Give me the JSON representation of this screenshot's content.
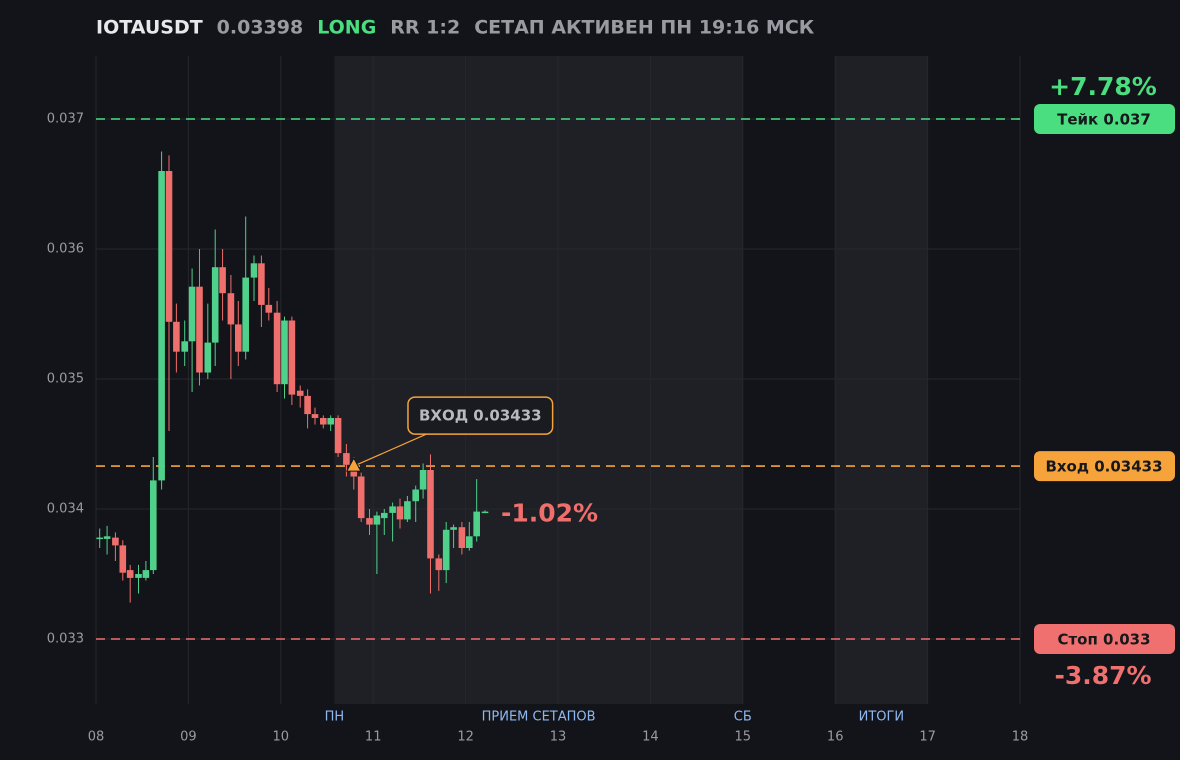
{
  "chart_data": {
    "type": "candlestick",
    "header": {
      "symbol": "IOTAUSDT",
      "price": 0.03398,
      "side": "LONG",
      "rr": "RR 1:2",
      "status": "СЕТАП АКТИВЕН ПН 19:16 МСК"
    },
    "x": [
      8.04,
      8.12,
      8.21,
      8.29,
      8.37,
      8.46,
      8.54,
      8.62,
      8.71,
      8.79,
      8.87,
      8.96,
      9.04,
      9.12,
      9.21,
      9.29,
      9.37,
      9.46,
      9.54,
      9.62,
      9.71,
      9.79,
      9.87,
      9.96,
      10.04,
      10.12,
      10.21,
      10.29,
      10.37,
      10.46,
      10.54,
      10.62,
      10.71,
      10.79,
      10.87,
      10.96,
      11.04,
      11.12,
      11.21,
      11.29,
      11.37,
      11.46,
      11.54,
      11.62,
      11.71,
      11.79,
      11.87,
      11.96,
      12.04,
      12.12,
      12.21
    ],
    "series": [
      {
        "name": "IOTAUSDT",
        "up_color": "#4fd18b",
        "down_color": "#ef6f6c",
        "open": [
          0.03378,
          0.03377,
          0.03378,
          0.03372,
          0.03353,
          0.03347,
          0.03347,
          0.03353,
          0.03422,
          0.0366,
          0.03544,
          0.03521,
          0.03529,
          0.03571,
          0.03505,
          0.03528,
          0.03586,
          0.03566,
          0.03542,
          0.03521,
          0.03578,
          0.03589,
          0.03557,
          0.03551,
          0.03496,
          0.03545,
          0.03491,
          0.03487,
          0.03473,
          0.0347,
          0.03465,
          0.0347,
          0.03443,
          0.03434,
          0.03425,
          0.03393,
          0.03388,
          0.03393,
          0.03397,
          0.03402,
          0.03392,
          0.03406,
          0.03415,
          0.0343,
          0.03362,
          0.03353,
          0.03384,
          0.03386,
          0.0337,
          0.03379,
          0.03398
        ],
        "high": [
          0.03385,
          0.03387,
          0.03382,
          0.03376,
          0.03357,
          0.03357,
          0.0336,
          0.0344,
          0.03675,
          0.03672,
          0.03558,
          0.03545,
          0.03585,
          0.036,
          0.03558,
          0.03615,
          0.036,
          0.0358,
          0.0356,
          0.03625,
          0.03595,
          0.03595,
          0.0357,
          0.0356,
          0.03548,
          0.03548,
          0.03495,
          0.03492,
          0.03478,
          0.03472,
          0.03472,
          0.03472,
          0.0345,
          0.0344,
          0.03428,
          0.034,
          0.03398,
          0.034,
          0.03405,
          0.03408,
          0.0341,
          0.03418,
          0.03435,
          0.03442,
          0.03365,
          0.0339,
          0.03388,
          0.0339,
          0.0339,
          0.03423,
          0.03399
        ],
        "low": [
          0.0337,
          0.03365,
          0.0336,
          0.03345,
          0.03328,
          0.03335,
          0.03345,
          0.0335,
          0.03415,
          0.0346,
          0.03505,
          0.0351,
          0.0349,
          0.03495,
          0.035,
          0.0351,
          0.03545,
          0.035,
          0.0351,
          0.03515,
          0.0356,
          0.0354,
          0.03545,
          0.0349,
          0.03485,
          0.0348,
          0.03478,
          0.03462,
          0.03465,
          0.03462,
          0.0346,
          0.0344,
          0.03425,
          0.03415,
          0.0339,
          0.0338,
          0.0335,
          0.0338,
          0.03375,
          0.03385,
          0.0339,
          0.0339,
          0.03408,
          0.03335,
          0.03337,
          0.03343,
          0.0337,
          0.03365,
          0.03368,
          0.03375,
          0.03397
        ],
        "close": [
          0.03378,
          0.03379,
          0.03372,
          0.03351,
          0.03347,
          0.0335,
          0.03353,
          0.03422,
          0.0366,
          0.03544,
          0.03521,
          0.03529,
          0.03571,
          0.03505,
          0.03528,
          0.03586,
          0.03566,
          0.03542,
          0.03521,
          0.03578,
          0.03589,
          0.03557,
          0.03551,
          0.03496,
          0.03545,
          0.03488,
          0.03487,
          0.03473,
          0.0347,
          0.03465,
          0.0347,
          0.03443,
          0.03434,
          0.03425,
          0.03393,
          0.03388,
          0.03395,
          0.03397,
          0.03402,
          0.03392,
          0.03406,
          0.03415,
          0.0343,
          0.03362,
          0.03353,
          0.03384,
          0.03386,
          0.0337,
          0.03379,
          0.03398,
          0.03398
        ]
      }
    ],
    "xlim": [
      8,
      18
    ],
    "xticks": [
      {
        "value": 8,
        "label": "08"
      },
      {
        "value": 9,
        "label": "09"
      },
      {
        "value": 10,
        "label": "10"
      },
      {
        "value": 11,
        "label": "11"
      },
      {
        "value": 12,
        "label": "12"
      },
      {
        "value": 13,
        "label": "13"
      },
      {
        "value": 14,
        "label": "14"
      },
      {
        "value": 15,
        "label": "15"
      },
      {
        "value": 16,
        "label": "16"
      },
      {
        "value": 17,
        "label": "17"
      },
      {
        "value": 18,
        "label": "18"
      }
    ],
    "ylim": [
      0.0325,
      0.0375
    ],
    "yticks": [
      0.033,
      0.034,
      0.035,
      0.036,
      0.037
    ],
    "grid": true,
    "sessions": [
      {
        "from": 10.58,
        "to": 15,
        "label": "ПРИЕМ СЕТАПОВ"
      },
      {
        "from": 16,
        "to": 17,
        "label": "ИТОГИ"
      }
    ],
    "day_markers": [
      {
        "x": 10.58,
        "label": "ПН"
      },
      {
        "x": 15,
        "label": "СБ"
      }
    ],
    "levels": [
      {
        "value": 0.037,
        "label": "Тейк 0.037",
        "color": "#4ade80",
        "change": "+7.78%"
      },
      {
        "value": 0.03433,
        "label": "Вход 0.03433",
        "color": "#f5a33a"
      },
      {
        "value": 0.033,
        "label": "Стоп 0.033",
        "color": "#f07070",
        "change": "-3.87%"
      }
    ],
    "entry": {
      "x": 10.79,
      "value": 0.03433,
      "label": "ВХОД 0.03433"
    },
    "current_change": "-1.02%"
  }
}
